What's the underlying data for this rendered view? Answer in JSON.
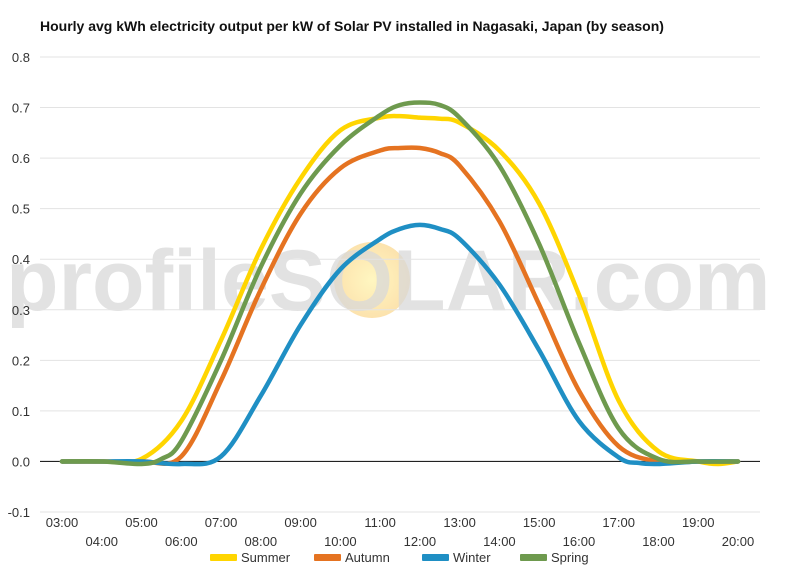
{
  "chart_data": {
    "type": "line",
    "title": "Hourly avg kWh electricity output per kW of Solar PV installed in Nagasaki, Japan (by season)",
    "xlabel": "",
    "ylabel": "",
    "x_ticks": [
      "03:00",
      "04:00",
      "05:00",
      "06:00",
      "07:00",
      "08:00",
      "09:00",
      "10:00",
      "11:00",
      "12:00",
      "13:00",
      "14:00",
      "15:00",
      "16:00",
      "17:00",
      "18:00",
      "19:00",
      "20:00"
    ],
    "xlim": [
      3,
      20
    ],
    "ylim": [
      -0.1,
      0.8
    ],
    "y_ticks": [
      -0.1,
      0.0,
      0.1,
      0.2,
      0.3,
      0.4,
      0.5,
      0.6,
      0.7,
      0.8
    ],
    "grid": true,
    "legend": "bottom",
    "watermark": "profileSOLAR.com",
    "series": [
      {
        "name": "Summer",
        "color": "#FFD500",
        "x": [
          3,
          4,
          5,
          6,
          7,
          8,
          9,
          10,
          11,
          11.5,
          12,
          12.5,
          13,
          14,
          15,
          16,
          17,
          18,
          19,
          19.5,
          20
        ],
        "values": [
          0,
          0,
          0.005,
          0.08,
          0.24,
          0.42,
          0.56,
          0.655,
          0.68,
          0.683,
          0.68,
          0.678,
          0.67,
          0.615,
          0.51,
          0.33,
          0.12,
          0.02,
          0,
          -0.005,
          0
        ]
      },
      {
        "name": "Autumn",
        "color": "#E57321",
        "x": [
          3,
          4,
          5,
          6,
          7,
          8,
          9,
          10,
          11,
          11.5,
          12,
          12.5,
          13,
          14,
          15,
          16,
          17,
          18,
          19,
          20
        ],
        "values": [
          0,
          0,
          0,
          0.01,
          0.16,
          0.34,
          0.49,
          0.58,
          0.615,
          0.62,
          0.62,
          0.61,
          0.585,
          0.475,
          0.31,
          0.14,
          0.03,
          0,
          0,
          0
        ]
      },
      {
        "name": "Winter",
        "color": "#1F8FC4",
        "x": [
          3,
          4,
          5,
          6,
          7,
          8,
          9,
          10,
          11,
          11.5,
          12,
          12.5,
          13,
          14,
          15,
          16,
          17,
          17.5,
          18,
          19,
          20
        ],
        "values": [
          0,
          0,
          0,
          -0.005,
          0.01,
          0.13,
          0.27,
          0.38,
          0.44,
          0.46,
          0.468,
          0.46,
          0.44,
          0.35,
          0.22,
          0.08,
          0.008,
          -0.003,
          -0.005,
          0,
          0
        ]
      },
      {
        "name": "Spring",
        "color": "#6E9A4E",
        "x": [
          3,
          4,
          5,
          5.5,
          6,
          7,
          8,
          9,
          10,
          11,
          11.5,
          12,
          12.5,
          13,
          14,
          15,
          16,
          17,
          18,
          19,
          20
        ],
        "values": [
          0,
          0,
          -0.005,
          0.005,
          0.04,
          0.2,
          0.385,
          0.53,
          0.625,
          0.685,
          0.705,
          0.71,
          0.705,
          0.68,
          0.585,
          0.43,
          0.235,
          0.065,
          0.005,
          0,
          0
        ]
      }
    ]
  }
}
